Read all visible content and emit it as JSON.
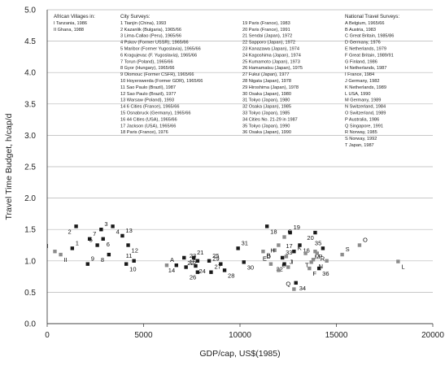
{
  "chart_data": {
    "type": "scatter",
    "xlabel": "GDP/cap, US$(1985)",
    "ylabel": "Travel Time Budget, h/cap/d",
    "xlim": [
      0,
      20000
    ],
    "ylim": [
      0.0,
      5.0
    ],
    "x_ticks": [
      "0",
      "5000",
      "10000",
      "15000",
      "20000"
    ],
    "y_ticks": [
      "0.0",
      "0.5",
      "1.0",
      "1.5",
      "2.0",
      "2.5",
      "3.0",
      "3.5",
      "4.0",
      "4.5",
      "5.0"
    ],
    "grid": true,
    "legend": {
      "african": {
        "title": "African Villages in:",
        "items": [
          "I  Tanzania, 1986",
          "II Ghana, 1988"
        ]
      },
      "city": {
        "title": "City Surveys:",
        "items": [
          "1   Tianjin (China), 1993",
          "2   Kazanlik (Bulgaria), 1965/66",
          "3   Lima-Callao (Peru), 1965/66",
          "4   Pskov (Former USSR), 1965/66",
          "5   Maribor (Former Yugoslavia), 1965/66",
          "6   Kragujevac (F. Yugoslavia), 1965/66",
          "7   Torun (Poland), 1965/66",
          "8   Gyor (Hungary), 1965/66",
          "9   Olomouc (Former CSFR), 1965/66",
          "10  Hoyerswerda (Former GDR), 1965/66",
          "11  Sao Paulo (Brazil), 1987",
          "12  Sao Paulo (Brazil), 1977",
          "13  Warsaw (Poland), 1993",
          "14  6 Cities (France), 1965/66",
          "15  Osnabruck (Germany), 1965/66",
          "16  44 Cities (USA), 1965/66",
          "17  Jackson (USA), 1965/66",
          "18  Paris (France), 1976",
          "19  Paris (France), 1983",
          "20  Paris (France), 1991",
          "21  Sendai (Japan), 1972",
          "22  Sapporo (Japan), 1972",
          "23  Kanazawa (Japan), 1974",
          "24  Kagoshima (Japan), 1974",
          "25  Kumamoto (Japan), 1973",
          "26  Hamamatsu (Japan), 1975",
          "27  Fukui (Japan), 1977",
          "28  Nigata (Japan), 1978",
          "29  Hiroshima (Japan), 1978",
          "30  Osaka (Japan), 1980",
          "31  Tokyo (Japan), 1980",
          "32  Osaka (Japan), 1985",
          "33  Tokyo (Japan), 1985",
          "34  Cities No. 21-29 in 1987",
          "35  Tokyo (Japan), 1990",
          "36  Osaka (Japan), 1990"
        ]
      },
      "national": {
        "title": "National Travel Surveys:",
        "items": [
          "A  Belgium, 1965/66",
          "B  Austria, 1983",
          "C  Great Britain, 1985/86",
          "D  Germany, 1976",
          "E  Netherlands, 1979",
          "F  Great Britain, 1989/91",
          "G  Finland, 1986",
          "H  Netherlands, 1987",
          "I   France, 1984",
          "J   Germany, 1982",
          "K  Netherlands, 1989",
          "L  USA, 1990",
          "M  Germany, 1989",
          "N  Switzerland, 1984",
          "O  Switzerland, 1989",
          "P  Australia, 1986",
          "Q  Singapore, 1991",
          "R  Norway, 1985",
          "S  Norway, 1992",
          "T  Japan, 1987"
        ]
      }
    },
    "points": [
      {
        "label": "I",
        "x": 400,
        "y": 1.15
      },
      {
        "label": "II",
        "x": 700,
        "y": 1.1
      },
      {
        "label": "1",
        "x": 1300,
        "y": 1.2
      },
      {
        "label": "2",
        "x": 1500,
        "y": 1.55
      },
      {
        "label": "3",
        "x": 2800,
        "y": 1.5
      },
      {
        "label": "4",
        "x": 3400,
        "y": 1.55
      },
      {
        "label": "5",
        "x": 2600,
        "y": 1.25
      },
      {
        "label": "6",
        "x": 2900,
        "y": 1.35
      },
      {
        "label": "7",
        "x": 2200,
        "y": 1.35
      },
      {
        "label": "8",
        "x": 3200,
        "y": 1.1
      },
      {
        "label": "9",
        "x": 2100,
        "y": 0.95
      },
      {
        "label": "10",
        "x": 4100,
        "y": 0.95
      },
      {
        "label": "11",
        "x": 4500,
        "y": 1.0
      },
      {
        "label": "12",
        "x": 4200,
        "y": 1.25
      },
      {
        "label": "13",
        "x": 3900,
        "y": 1.4
      },
      {
        "label": "14",
        "x": 6700,
        "y": 0.93
      },
      {
        "label": "15",
        "x": 7200,
        "y": 0.9
      },
      {
        "label": "16",
        "x": 13100,
        "y": 1.25
      },
      {
        "label": "17",
        "x": 12800,
        "y": 1.15
      },
      {
        "label": "18",
        "x": 11400,
        "y": 1.55
      },
      {
        "label": "19",
        "x": 12600,
        "y": 1.45
      },
      {
        "label": "20",
        "x": 13900,
        "y": 1.45
      },
      {
        "label": "21",
        "x": 7600,
        "y": 1.05
      },
      {
        "label": "22",
        "x": 7100,
        "y": 1.05
      },
      {
        "label": "23",
        "x": 7800,
        "y": 1.0
      },
      {
        "label": "24",
        "x": 7700,
        "y": 0.92
      },
      {
        "label": "25",
        "x": 8400,
        "y": 1.0
      },
      {
        "label": "26",
        "x": 7800,
        "y": 0.82
      },
      {
        "label": "27",
        "x": 8500,
        "y": 0.82
      },
      {
        "label": "28",
        "x": 9200,
        "y": 0.85
      },
      {
        "label": "29",
        "x": 9000,
        "y": 0.95
      },
      {
        "label": "30",
        "x": 10200,
        "y": 0.98
      },
      {
        "label": "31",
        "x": 9900,
        "y": 1.2
      },
      {
        "label": "32",
        "x": 12300,
        "y": 0.95
      },
      {
        "label": "33",
        "x": 12200,
        "y": 1.05
      },
      {
        "label": "34",
        "x": 12900,
        "y": 0.65
      },
      {
        "label": "35",
        "x": 14300,
        "y": 1.2
      },
      {
        "label": "36",
        "x": 14100,
        "y": 0.88
      },
      {
        "label": "A",
        "x": 6200,
        "y": 0.93
      },
      {
        "label": "B",
        "x": 11800,
        "y": 1.17
      },
      {
        "label": "C",
        "x": 12000,
        "y": 0.85
      },
      {
        "label": "D",
        "x": 11200,
        "y": 1.15
      },
      {
        "label": "E",
        "x": 11600,
        "y": 0.95
      },
      {
        "label": "F",
        "x": 13600,
        "y": 0.88
      },
      {
        "label": "G",
        "x": 12300,
        "y": 1.38
      },
      {
        "label": "H",
        "x": 12000,
        "y": 1.25
      },
      {
        "label": "I",
        "x": 12500,
        "y": 0.9
      },
      {
        "label": "J",
        "x": 12400,
        "y": 1.07
      },
      {
        "label": "K",
        "x": 13400,
        "y": 1.12
      },
      {
        "label": "L",
        "x": 18200,
        "y": 0.99
      },
      {
        "label": "M",
        "x": 13700,
        "y": 0.98
      },
      {
        "label": "N",
        "x": 14500,
        "y": 1.0
      },
      {
        "label": "O",
        "x": 16200,
        "y": 1.25
      },
      {
        "label": "P",
        "x": 13900,
        "y": 1.15
      },
      {
        "label": "Q",
        "x": 12800,
        "y": 0.55
      },
      {
        "label": "R",
        "x": 14000,
        "y": 1.12
      },
      {
        "label": "S",
        "x": 15300,
        "y": 1.1
      },
      {
        "label": "T",
        "x": 13800,
        "y": 1.02
      }
    ]
  }
}
